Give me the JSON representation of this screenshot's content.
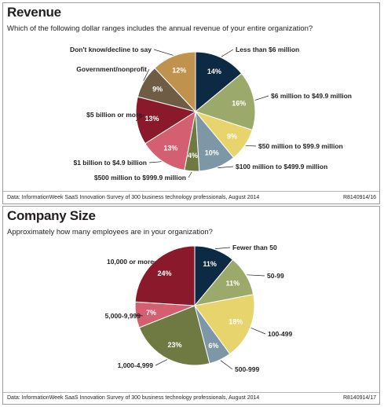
{
  "chart_data": [
    {
      "type": "pie",
      "title": "Revenue",
      "subtitle": "Which of the following dollar ranges includes the annual revenue of your entire organization?",
      "slices": [
        {
          "label": "Less than $6 million",
          "value": 14,
          "display": "14%",
          "color": "#0d2a44"
        },
        {
          "label": "$6 million to $49.9 million",
          "value": 16,
          "display": "16%",
          "color": "#9ba96a"
        },
        {
          "label": "$50 million to $99.9 million",
          "value": 9,
          "display": "9%",
          "color": "#e7d46c"
        },
        {
          "label": "$100 million to $499.9 million",
          "value": 10,
          "display": "10%",
          "color": "#7d97a7"
        },
        {
          "label": "$500 million to $999.9 million",
          "value": 4,
          "display": "4%",
          "color": "#6f7a43"
        },
        {
          "label": "$1 billion to $4.9 billion",
          "value": 13,
          "display": "13%",
          "color": "#d35f70"
        },
        {
          "label": "$5 billion or more",
          "value": 13,
          "display": "13%",
          "color": "#8a1a2b"
        },
        {
          "label": "Government/nonprofit",
          "value": 9,
          "display": "9%",
          "color": "#6e5c44"
        },
        {
          "label": "Don't know/decline to say",
          "value": 12,
          "display": "12%",
          "color": "#bf924e"
        }
      ],
      "source": "Data: InformationWeek SaaS Innovation Survey of 300 business technology professionals, August 2014",
      "code": "R8140914/16"
    },
    {
      "type": "pie",
      "title": "Company Size",
      "subtitle": "Approximately how many employees are in your organization?",
      "slices": [
        {
          "label": "Fewer than 50",
          "value": 11,
          "display": "11%",
          "color": "#0d2a44"
        },
        {
          "label": "50-99",
          "value": 11,
          "display": "11%",
          "color": "#9ba96a"
        },
        {
          "label": "100-499",
          "value": 18,
          "display": "18%",
          "color": "#e7d46c"
        },
        {
          "label": "500-999",
          "value": 6,
          "display": "6%",
          "color": "#7d97a7"
        },
        {
          "label": "1,000-4,999",
          "value": 23,
          "display": "23%",
          "color": "#6f7a43"
        },
        {
          "label": "5,000-9,999",
          "value": 7,
          "display": "7%",
          "color": "#d35f70"
        },
        {
          "label": "10,000 or more",
          "value": 24,
          "display": "24%",
          "color": "#8a1a2b"
        }
      ],
      "source": "Data: InformationWeek SaaS Innovation Survey of 300 business technology professionals, August 2014",
      "code": "R8140914/17"
    }
  ]
}
